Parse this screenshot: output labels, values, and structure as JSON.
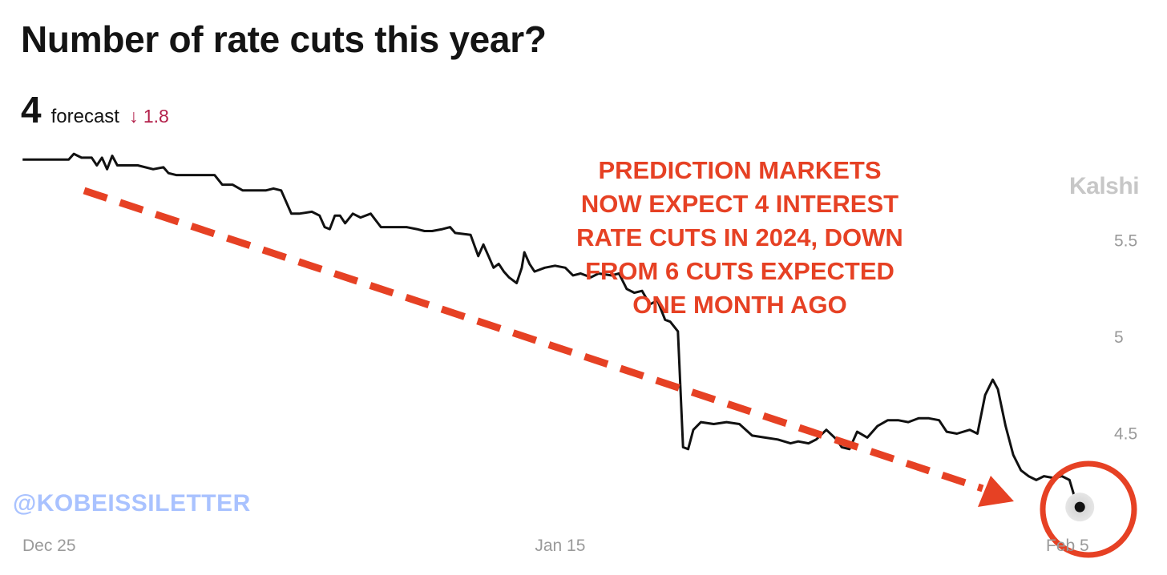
{
  "header": {
    "title": "Number of rate cuts this year?",
    "forecast_value": "4",
    "forecast_label": "forecast",
    "forecast_change": "↓ 1.8"
  },
  "brand": "Kalshi",
  "annotation": {
    "lines": [
      "PREDICTION MARKETS",
      "NOW EXPECT 4 INTEREST",
      "RATE CUTS IN 2024, DOWN",
      "FROM 6 CUTS EXPECTED",
      "ONE MONTH AGO"
    ]
  },
  "watermark": "@KOBEISSILETTER",
  "colors": {
    "line": "#111111",
    "annotation": "#e64124",
    "change_down": "#b3204a",
    "watermark": "#a9c2ff",
    "axis_text": "#9a9a9a"
  },
  "chart_data": {
    "type": "line",
    "x_tick_labels": [
      "Dec 25",
      "Jan 15",
      "Feb 5"
    ],
    "x_ticks": [
      0,
      21,
      42
    ],
    "y_tick_labels": [
      "5.5",
      "5",
      "4.5"
    ],
    "y_ticks": [
      5.5,
      5.0,
      4.5
    ],
    "xlim": [
      -0.1,
      41.7
    ],
    "ylim": [
      4.05,
      6.0
    ],
    "series": [
      {
        "values": [
          [
            0,
            5.92
          ],
          [
            1.8,
            5.92
          ],
          [
            2.0,
            5.95
          ],
          [
            2.3,
            5.93
          ],
          [
            2.7,
            5.93
          ],
          [
            2.9,
            5.89
          ],
          [
            3.1,
            5.93
          ],
          [
            3.3,
            5.87
          ],
          [
            3.5,
            5.94
          ],
          [
            3.7,
            5.89
          ],
          [
            4.5,
            5.89
          ],
          [
            5.1,
            5.87
          ],
          [
            5.5,
            5.88
          ],
          [
            5.7,
            5.85
          ],
          [
            6.0,
            5.84
          ],
          [
            7.5,
            5.84
          ],
          [
            7.8,
            5.79
          ],
          [
            8.2,
            5.79
          ],
          [
            8.6,
            5.76
          ],
          [
            9.5,
            5.76
          ],
          [
            9.8,
            5.77
          ],
          [
            10.1,
            5.76
          ],
          [
            10.5,
            5.64
          ],
          [
            10.8,
            5.64
          ],
          [
            11.3,
            5.65
          ],
          [
            11.6,
            5.63
          ],
          [
            11.8,
            5.57
          ],
          [
            12.0,
            5.56
          ],
          [
            12.2,
            5.63
          ],
          [
            12.4,
            5.63
          ],
          [
            12.6,
            5.59
          ],
          [
            12.9,
            5.64
          ],
          [
            13.2,
            5.62
          ],
          [
            13.6,
            5.64
          ],
          [
            14.0,
            5.57
          ],
          [
            15.0,
            5.57
          ],
          [
            15.4,
            5.56
          ],
          [
            15.7,
            5.55
          ],
          [
            16.0,
            5.55
          ],
          [
            16.4,
            5.56
          ],
          [
            16.7,
            5.57
          ],
          [
            16.9,
            5.54
          ],
          [
            17.5,
            5.53
          ],
          [
            17.8,
            5.42
          ],
          [
            18.0,
            5.48
          ],
          [
            18.2,
            5.42
          ],
          [
            18.4,
            5.36
          ],
          [
            18.6,
            5.38
          ],
          [
            18.8,
            5.34
          ],
          [
            19.0,
            5.31
          ],
          [
            19.3,
            5.28
          ],
          [
            19.5,
            5.36
          ],
          [
            19.6,
            5.44
          ],
          [
            19.8,
            5.38
          ],
          [
            20.0,
            5.34
          ],
          [
            20.4,
            5.36
          ],
          [
            20.8,
            5.37
          ],
          [
            21.2,
            5.36
          ],
          [
            21.5,
            5.32
          ],
          [
            21.8,
            5.33
          ],
          [
            22.2,
            5.31
          ],
          [
            22.5,
            5.33
          ],
          [
            23.0,
            5.32
          ],
          [
            23.3,
            5.33
          ],
          [
            23.6,
            5.25
          ],
          [
            23.9,
            5.23
          ],
          [
            24.2,
            5.24
          ],
          [
            24.5,
            5.17
          ],
          [
            24.8,
            5.19
          ],
          [
            25.1,
            5.09
          ],
          [
            25.3,
            5.08
          ],
          [
            25.6,
            5.03
          ],
          [
            25.8,
            4.43
          ],
          [
            26.0,
            4.42
          ],
          [
            26.2,
            4.52
          ],
          [
            26.5,
            4.56
          ],
          [
            27.0,
            4.55
          ],
          [
            27.5,
            4.56
          ],
          [
            28.0,
            4.55
          ],
          [
            28.5,
            4.49
          ],
          [
            29.0,
            4.48
          ],
          [
            29.5,
            4.47
          ],
          [
            30.0,
            4.45
          ],
          [
            30.3,
            4.46
          ],
          [
            30.7,
            4.45
          ],
          [
            31.0,
            4.47
          ],
          [
            31.4,
            4.52
          ],
          [
            31.8,
            4.47
          ],
          [
            32.0,
            4.43
          ],
          [
            32.3,
            4.42
          ],
          [
            32.6,
            4.51
          ],
          [
            33.0,
            4.48
          ],
          [
            33.4,
            4.54
          ],
          [
            33.8,
            4.57
          ],
          [
            34.2,
            4.57
          ],
          [
            34.6,
            4.56
          ],
          [
            35.0,
            4.58
          ],
          [
            35.4,
            4.58
          ],
          [
            35.8,
            4.57
          ],
          [
            36.1,
            4.51
          ],
          [
            36.5,
            4.5
          ],
          [
            37.0,
            4.52
          ],
          [
            37.3,
            4.5
          ],
          [
            37.6,
            4.7
          ],
          [
            37.9,
            4.78
          ],
          [
            38.1,
            4.73
          ],
          [
            38.4,
            4.54
          ],
          [
            38.7,
            4.39
          ],
          [
            39.0,
            4.31
          ],
          [
            39.3,
            4.28
          ],
          [
            39.6,
            4.26
          ],
          [
            39.9,
            4.28
          ],
          [
            40.3,
            4.27
          ],
          [
            40.6,
            4.28
          ],
          [
            40.9,
            4.26
          ],
          [
            41.1,
            4.17
          ],
          [
            41.3,
            4.12
          ]
        ]
      }
    ]
  }
}
